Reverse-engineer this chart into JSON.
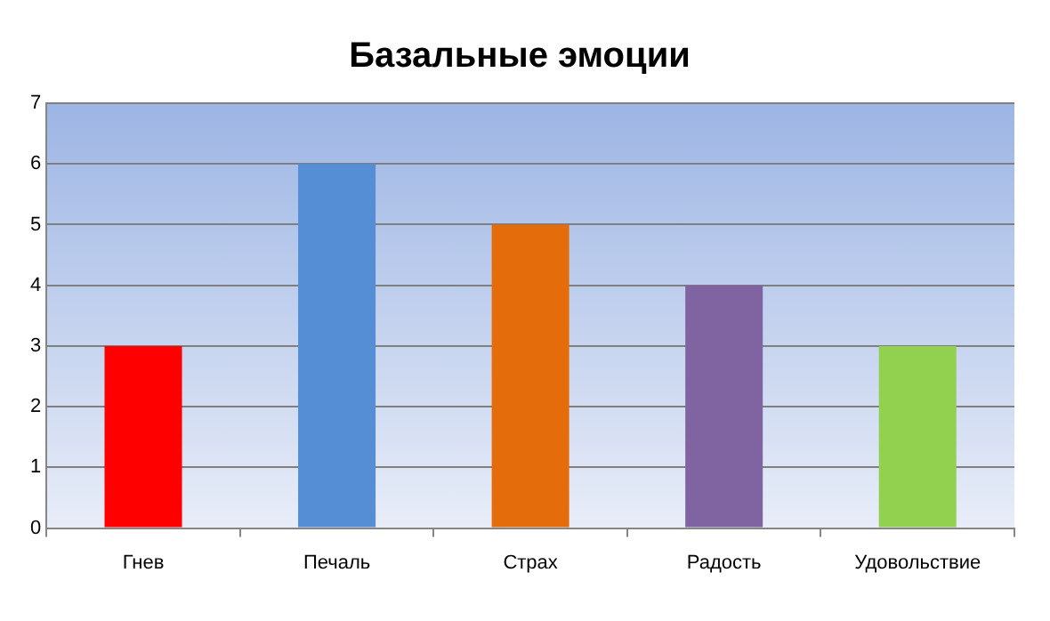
{
  "chart_data": {
    "type": "bar",
    "title": "Базальные эмоции",
    "categories": [
      "Гнев",
      "Печаль",
      "Страх",
      "Радость",
      "Удовольствие"
    ],
    "values": [
      3,
      6,
      5,
      4,
      3
    ],
    "colors": [
      "#ff0000",
      "#558ed5",
      "#e46c0a",
      "#8064a2",
      "#92d050"
    ],
    "ylim": [
      0,
      7
    ],
    "yticks": [
      0,
      1,
      2,
      3,
      4,
      5,
      6,
      7
    ],
    "grid": "y",
    "legend": false
  }
}
